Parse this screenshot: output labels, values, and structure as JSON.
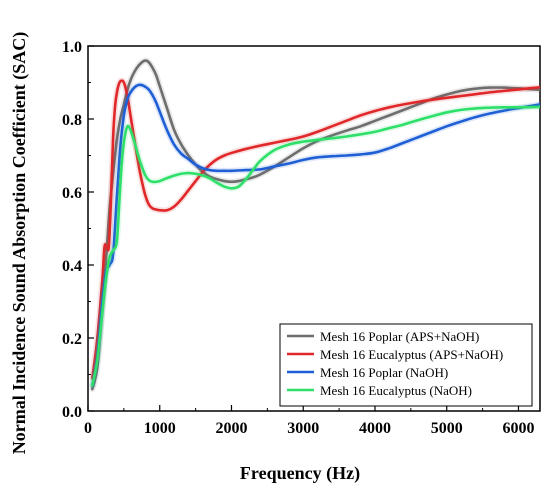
{
  "chart_data": {
    "type": "line",
    "xlabel": "Frequency (Hz)",
    "ylabel": "Normal Incidence Sound Absorption Coefficient (SAC)",
    "xlim": [
      0,
      6300
    ],
    "ylim": [
      0,
      1.0
    ],
    "xticks": [
      0,
      1000,
      2000,
      3000,
      4000,
      5000,
      6000
    ],
    "yticks": [
      0.0,
      0.2,
      0.4,
      0.6,
      0.8,
      1.0
    ],
    "xtick_labels": [
      "0",
      "1000",
      "2000",
      "3000",
      "4000",
      "5000",
      "6000"
    ],
    "ytick_labels": [
      "0.0",
      "0.2",
      "0.4",
      "0.6",
      "0.8",
      "1.0"
    ],
    "grid": false,
    "legend_position": "bottom-right",
    "series": [
      {
        "name": "Mesh 16 Poplar (APS+NaOH)",
        "color": "#6e6e6e",
        "x": [
          60,
          130,
          200,
          250,
          300,
          350,
          400,
          450,
          500,
          550,
          600,
          650,
          700,
          750,
          800,
          850,
          900,
          950,
          1000,
          1100,
          1200,
          1300,
          1400,
          1500,
          1600,
          1700,
          1800,
          1900,
          2000,
          2100,
          2200,
          2300,
          2400,
          2600,
          2800,
          3000,
          3200,
          3400,
          3600,
          3800,
          4000,
          4200,
          4400,
          4600,
          4800,
          5000,
          5200,
          5400,
          5600,
          5800,
          6000,
          6300
        ],
        "y": [
          0.06,
          0.12,
          0.28,
          0.41,
          0.55,
          0.65,
          0.74,
          0.8,
          0.84,
          0.88,
          0.91,
          0.93,
          0.945,
          0.955,
          0.96,
          0.955,
          0.94,
          0.92,
          0.89,
          0.83,
          0.77,
          0.73,
          0.7,
          0.675,
          0.655,
          0.642,
          0.635,
          0.63,
          0.628,
          0.63,
          0.635,
          0.64,
          0.648,
          0.67,
          0.695,
          0.72,
          0.74,
          0.755,
          0.768,
          0.78,
          0.795,
          0.81,
          0.825,
          0.84,
          0.855,
          0.867,
          0.877,
          0.883,
          0.886,
          0.886,
          0.884,
          0.88
        ]
      },
      {
        "name": "Mesh 16 Eucalyptus (APS+NaOH)",
        "color": "#e0282a",
        "x": [
          60,
          130,
          200,
          230,
          260,
          290,
          320,
          350,
          380,
          410,
          440,
          470,
          500,
          530,
          560,
          600,
          650,
          700,
          750,
          800,
          850,
          900,
          950,
          1000,
          1100,
          1200,
          1300,
          1400,
          1500,
          1600,
          1700,
          1800,
          1900,
          2000,
          2200,
          2400,
          2600,
          2800,
          3000,
          3200,
          3400,
          3600,
          3800,
          4000,
          4200,
          4400,
          4600,
          4800,
          5000,
          5200,
          5400,
          5600,
          5800,
          6000,
          6300
        ],
        "y": [
          0.09,
          0.2,
          0.36,
          0.45,
          0.45,
          0.45,
          0.58,
          0.75,
          0.84,
          0.88,
          0.9,
          0.905,
          0.9,
          0.88,
          0.85,
          0.8,
          0.74,
          0.68,
          0.63,
          0.59,
          0.565,
          0.555,
          0.552,
          0.55,
          0.55,
          0.56,
          0.58,
          0.605,
          0.63,
          0.655,
          0.675,
          0.69,
          0.7,
          0.707,
          0.718,
          0.727,
          0.735,
          0.743,
          0.752,
          0.765,
          0.78,
          0.795,
          0.81,
          0.822,
          0.832,
          0.84,
          0.847,
          0.853,
          0.858,
          0.863,
          0.868,
          0.873,
          0.877,
          0.881,
          0.887
        ]
      },
      {
        "name": "Mesh 16 Poplar (NaOH)",
        "color": "#1f5fd6",
        "x": [
          60,
          130,
          200,
          250,
          300,
          350,
          400,
          450,
          500,
          550,
          600,
          650,
          700,
          750,
          800,
          850,
          900,
          950,
          1000,
          1100,
          1200,
          1300,
          1400,
          1500,
          1600,
          1700,
          1800,
          1900,
          2000,
          2200,
          2400,
          2600,
          2800,
          3000,
          3200,
          3400,
          3600,
          3800,
          4000,
          4200,
          4400,
          4600,
          4800,
          5000,
          5200,
          5400,
          5600,
          5800,
          6000,
          6300
        ],
        "y": [
          0.07,
          0.15,
          0.3,
          0.38,
          0.4,
          0.43,
          0.58,
          0.72,
          0.81,
          0.855,
          0.875,
          0.887,
          0.893,
          0.893,
          0.888,
          0.88,
          0.865,
          0.845,
          0.82,
          0.77,
          0.73,
          0.705,
          0.69,
          0.675,
          0.665,
          0.66,
          0.658,
          0.658,
          0.658,
          0.66,
          0.662,
          0.67,
          0.678,
          0.688,
          0.695,
          0.698,
          0.7,
          0.703,
          0.708,
          0.72,
          0.735,
          0.75,
          0.765,
          0.78,
          0.793,
          0.805,
          0.815,
          0.823,
          0.83,
          0.84
        ]
      },
      {
        "name": "Mesh 16 Eucalyptus (NaOH)",
        "color": "#2ee06a",
        "x": [
          60,
          130,
          200,
          250,
          300,
          350,
          400,
          430,
          460,
          490,
          520,
          550,
          580,
          610,
          650,
          700,
          750,
          800,
          850,
          900,
          950,
          1000,
          1100,
          1200,
          1300,
          1400,
          1500,
          1600,
          1700,
          1800,
          1900,
          2000,
          2100,
          2200,
          2300,
          2400,
          2600,
          2800,
          3000,
          3200,
          3400,
          3600,
          3800,
          4000,
          4200,
          4400,
          4600,
          4800,
          5000,
          5200,
          5400,
          5600,
          5800,
          6000,
          6300
        ],
        "y": [
          0.07,
          0.14,
          0.27,
          0.36,
          0.42,
          0.44,
          0.46,
          0.55,
          0.65,
          0.72,
          0.76,
          0.78,
          0.775,
          0.76,
          0.735,
          0.7,
          0.67,
          0.645,
          0.632,
          0.628,
          0.628,
          0.63,
          0.638,
          0.645,
          0.65,
          0.652,
          0.65,
          0.645,
          0.637,
          0.625,
          0.615,
          0.61,
          0.615,
          0.635,
          0.66,
          0.685,
          0.715,
          0.73,
          0.738,
          0.743,
          0.747,
          0.752,
          0.758,
          0.765,
          0.775,
          0.785,
          0.797,
          0.808,
          0.818,
          0.825,
          0.829,
          0.831,
          0.832,
          0.832,
          0.833
        ]
      }
    ]
  }
}
